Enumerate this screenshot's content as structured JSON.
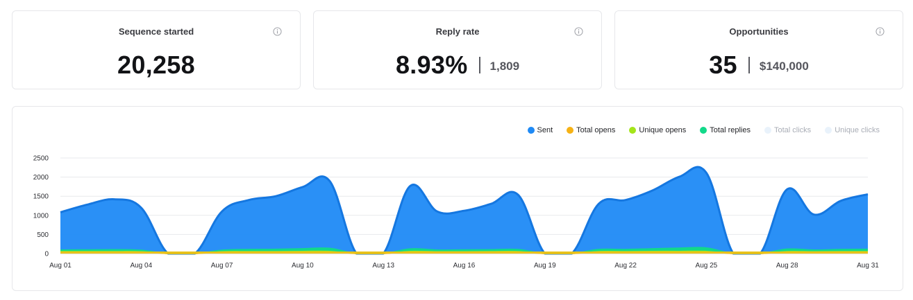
{
  "stats": [
    {
      "title": "Sequence started",
      "value": "20,258",
      "sub": "",
      "icon": "info-icon"
    },
    {
      "title": "Reply rate",
      "value": "8.93%",
      "sub": "1,809",
      "icon": "info-icon"
    },
    {
      "title": "Opportunities",
      "value": "35",
      "sub": "$140,000",
      "icon": "info-icon"
    }
  ],
  "legend": [
    {
      "label": "Sent",
      "color": "#1f8af5",
      "muted": false
    },
    {
      "label": "Total opens",
      "color": "#f6b215",
      "muted": false
    },
    {
      "label": "Unique opens",
      "color": "#a4e51a",
      "muted": false
    },
    {
      "label": "Total replies",
      "color": "#12d98a",
      "muted": false
    },
    {
      "label": "Total clicks",
      "color": "#e9f2fb",
      "muted": true
    },
    {
      "label": "Unique clicks",
      "color": "#e9f2fb",
      "muted": true
    }
  ],
  "chart_data": {
    "type": "area",
    "ylim": [
      0,
      2500
    ],
    "yticks": [
      0,
      500,
      1000,
      1500,
      2000,
      2500
    ],
    "xtick_labels": [
      "Aug 01",
      "Aug 04",
      "Aug 07",
      "Aug 10",
      "Aug 13",
      "Aug 16",
      "Aug 19",
      "Aug 22",
      "Aug 25",
      "Aug 28",
      "Aug 31"
    ],
    "xtick_days": [
      1,
      4,
      7,
      10,
      13,
      16,
      19,
      22,
      25,
      28,
      31
    ],
    "x": [
      1,
      2,
      3,
      4,
      5,
      6,
      7,
      8,
      9,
      10,
      11,
      12,
      13,
      14,
      15,
      16,
      17,
      18,
      19,
      20,
      21,
      22,
      23,
      24,
      25,
      26,
      27,
      28,
      29,
      30,
      31
    ],
    "series": [
      {
        "name": "Sent",
        "color": "#1f8af5",
        "values": [
          1080,
          1280,
          1420,
          1200,
          0,
          0,
          1100,
          1400,
          1500,
          1740,
          1900,
          0,
          0,
          1770,
          1100,
          1120,
          1300,
          1540,
          0,
          0,
          1300,
          1400,
          1650,
          2010,
          2110,
          0,
          0,
          1680,
          1020,
          1380,
          1550
        ]
      },
      {
        "name": "Total replies",
        "color": "#12d98a",
        "values": [
          95,
          100,
          105,
          90,
          0,
          0,
          90,
          110,
          115,
          130,
          140,
          0,
          0,
          125,
          95,
          100,
          105,
          110,
          0,
          0,
          110,
          110,
          130,
          145,
          150,
          0,
          0,
          120,
          95,
          110,
          115
        ]
      },
      {
        "name": "Unique opens",
        "color": "#a4e51a",
        "values": [
          55,
          55,
          55,
          50,
          0,
          0,
          50,
          55,
          55,
          60,
          60,
          0,
          0,
          60,
          50,
          50,
          55,
          55,
          0,
          0,
          55,
          55,
          60,
          60,
          60,
          0,
          0,
          55,
          50,
          55,
          55
        ]
      },
      {
        "name": "Total opens",
        "color": "#f6b215",
        "values": [
          35,
          35,
          35,
          35,
          0,
          0,
          35,
          35,
          35,
          40,
          40,
          0,
          0,
          40,
          35,
          35,
          35,
          35,
          0,
          0,
          35,
          35,
          40,
          40,
          40,
          0,
          0,
          35,
          35,
          35,
          35
        ]
      }
    ],
    "grid": true,
    "legend_position": "top-right"
  }
}
